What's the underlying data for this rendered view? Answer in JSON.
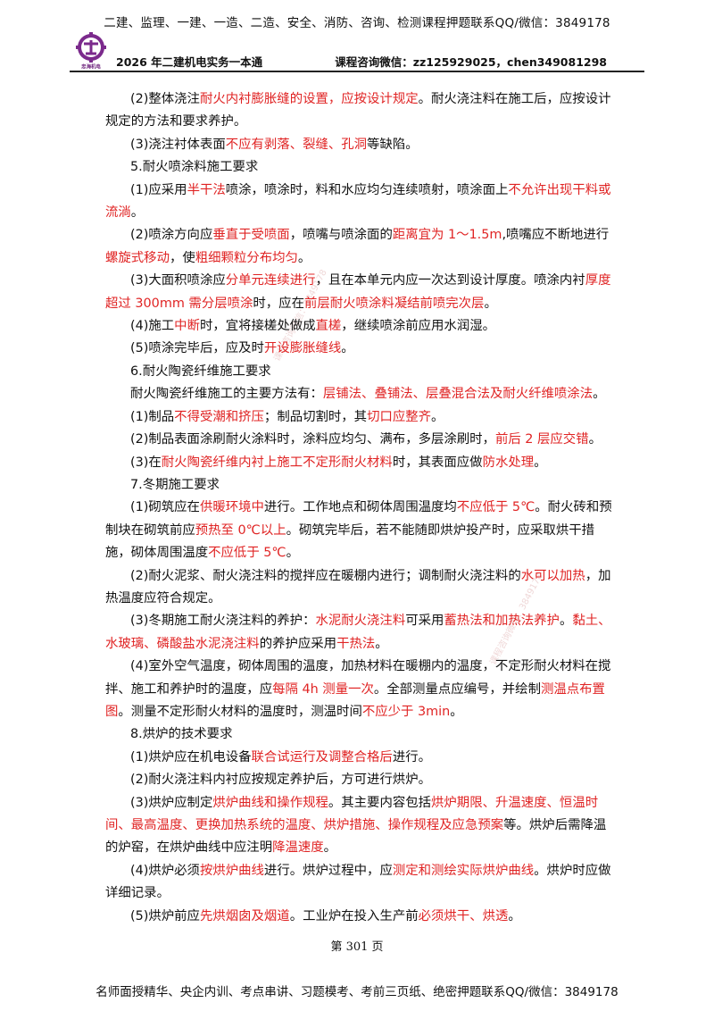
{
  "banner": {
    "top": "二建、监理、一建、一造、二造、安全、消防、咨询、检测课程押题联系QQ/微信：3849178",
    "bottom": "名师面授精华、央企内训、考点串讲、习题模考、考前三页纸、绝密押题联系QQ/微信：3849178"
  },
  "header": {
    "logo_text": "忠海机电",
    "title": "2026 年二建机电实务一本通",
    "contact": "课程咨询微信：zz125929025，chen349081298"
  },
  "watermarks": {
    "w1": "课程咨询微信：3849178",
    "w2": "课程咨询微信：3849178"
  },
  "paragraphs": [
    [
      {
        "t": "(2)整体浇注"
      },
      {
        "t": "耐火内衬膨胀缝的设置，应按设计规定",
        "r": 1
      },
      {
        "t": "。耐火浇注料在施工后，应按设计规定的方法和要求养护。"
      }
    ],
    [
      {
        "t": "(3)浇注衬体表面"
      },
      {
        "t": "不应有剥落、裂缝、孔洞",
        "r": 1
      },
      {
        "t": "等缺陷。"
      }
    ],
    [
      {
        "t": "5.耐火喷涂料施工要求"
      }
    ],
    [
      {
        "t": "(1)应采用"
      },
      {
        "t": "半干法",
        "r": 1
      },
      {
        "t": "喷涂，喷涂时，料和水应均匀连续喷射，喷涂面上"
      },
      {
        "t": "不允许出现干料或流淌",
        "r": 1
      },
      {
        "t": "。"
      }
    ],
    [
      {
        "t": "(2)喷涂方向应"
      },
      {
        "t": "垂直于受喷面",
        "r": 1
      },
      {
        "t": "，喷嘴与喷涂面的"
      },
      {
        "t": "距离宜为 1～1.5m",
        "r": 1
      },
      {
        "t": ",喷嘴应不断地进行"
      },
      {
        "t": "螺旋式移动",
        "r": 1
      },
      {
        "t": "，使"
      },
      {
        "t": "粗细颗粒分布均匀",
        "r": 1
      },
      {
        "t": "。"
      }
    ],
    [
      {
        "t": "(3)大面积喷涂应"
      },
      {
        "t": "分单元连续进行",
        "r": 1
      },
      {
        "t": "，且在本单元内应一次达到设计厚度。喷涂内衬"
      },
      {
        "t": "厚度超过 300mm 需分层喷涂",
        "r": 1
      },
      {
        "t": "时，应在"
      },
      {
        "t": "前层耐火喷涂料凝结前喷完次层",
        "r": 1
      },
      {
        "t": "。"
      }
    ],
    [
      {
        "t": "(4)施工"
      },
      {
        "t": "中断",
        "r": 1
      },
      {
        "t": "时，宜将接槎处做成"
      },
      {
        "t": "直槎",
        "r": 1
      },
      {
        "t": "，继续喷涂前应用水润湿。"
      }
    ],
    [
      {
        "t": "(5)喷涂完毕后，应及时"
      },
      {
        "t": "开设膨胀缝线",
        "r": 1
      },
      {
        "t": "。"
      }
    ],
    [
      {
        "t": "6.耐火陶瓷纤维施工要求"
      }
    ],
    [
      {
        "t": "耐火陶瓷纤维施工的主要方法有："
      },
      {
        "t": "层铺法、叠铺法、层叠混合法及耐火纤维喷涂法",
        "r": 1
      },
      {
        "t": "。"
      }
    ],
    [
      {
        "t": "(1)制品"
      },
      {
        "t": "不得受潮和挤压",
        "r": 1
      },
      {
        "t": "；制品切割时，其"
      },
      {
        "t": "切口应整齐",
        "r": 1
      },
      {
        "t": "。"
      }
    ],
    [
      {
        "t": "(2)制品表面涂刷耐火涂料时，涂料应均匀、满布，多层涂刷时，"
      },
      {
        "t": "前后 2 层应交错",
        "r": 1
      },
      {
        "t": "。"
      }
    ],
    [
      {
        "t": "(3)在"
      },
      {
        "t": "耐火陶瓷纤维内衬上施工不定形耐火材料",
        "r": 1
      },
      {
        "t": "时，其表面应做"
      },
      {
        "t": "防水处理",
        "r": 1
      },
      {
        "t": "。"
      }
    ],
    [
      {
        "t": "7.冬期施工要求"
      }
    ],
    [
      {
        "t": "(1)砌筑应在"
      },
      {
        "t": "供暖环境中",
        "r": 1
      },
      {
        "t": "进行。工作地点和砌体周围温度均"
      },
      {
        "t": "不应低于 5℃",
        "r": 1
      },
      {
        "t": "。耐火砖和预制块在砌筑前应"
      },
      {
        "t": "预热至 0℃以上",
        "r": 1
      },
      {
        "t": "。砌筑完毕后，若不能随即烘炉投产时，应采取烘干措施，砌体周围温度"
      },
      {
        "t": "不应低于 5℃",
        "r": 1
      },
      {
        "t": "。"
      }
    ],
    [
      {
        "t": "(2)耐火泥浆、耐火浇注料的搅拌应在暖棚内进行；调制耐火浇注料的"
      },
      {
        "t": "水可以加热",
        "r": 1
      },
      {
        "t": "，加热温度应符合规定。"
      }
    ],
    [
      {
        "t": "(3)冬期施工耐火浇注料的养护："
      },
      {
        "t": "水泥耐火浇注料",
        "r": 1
      },
      {
        "t": "可采用"
      },
      {
        "t": "蓄热法和加热法养护",
        "r": 1
      },
      {
        "t": "。"
      },
      {
        "t": "黏土、水玻璃、磷酸盐水泥浇注料",
        "r": 1
      },
      {
        "t": "的养护应采用"
      },
      {
        "t": "干热法",
        "r": 1
      },
      {
        "t": "。"
      }
    ],
    [
      {
        "t": "(4)室外空气温度，砌体周围的温度，加热材料在暖棚内的温度，不定形耐火材料在搅拌、施工和养护时的温度，应"
      },
      {
        "t": "每隔 4h 测量一次",
        "r": 1
      },
      {
        "t": "。全部测量点应编号，并绘制"
      },
      {
        "t": "测温点布置图",
        "r": 1
      },
      {
        "t": "。测量不定形耐火材料的温度时，测温时间"
      },
      {
        "t": "不应少于 3min",
        "r": 1
      },
      {
        "t": "。"
      }
    ],
    [
      {
        "t": "8.烘炉的技术要求"
      }
    ],
    [
      {
        "t": "(1)烘炉应在机电设备"
      },
      {
        "t": "联合试运行及调整合格后",
        "r": 1
      },
      {
        "t": "进行。"
      }
    ],
    [
      {
        "t": "(2)耐火浇注料内衬应按规定养护后，方可进行烘炉。"
      }
    ],
    [
      {
        "t": "(3)烘炉应制定"
      },
      {
        "t": "烘炉曲线和操作规程",
        "r": 1
      },
      {
        "t": "。其主要内容包括"
      },
      {
        "t": "烘炉期限、升温速度、恒温时间、最高温度、更换加热系统的温度、烘炉措施、操作规程及应急预案",
        "r": 1
      },
      {
        "t": "等。烘炉后需降温的炉窑，在烘炉曲线中应注明"
      },
      {
        "t": "降温速度",
        "r": 1
      },
      {
        "t": "。"
      }
    ],
    [
      {
        "t": "(4)烘炉必须"
      },
      {
        "t": "按烘炉曲线",
        "r": 1
      },
      {
        "t": "进行。烘炉过程中，应"
      },
      {
        "t": "测定和测绘实际烘炉曲线",
        "r": 1
      },
      {
        "t": "。烘炉时应做详细记录。"
      }
    ],
    [
      {
        "t": "(5)烘炉前应"
      },
      {
        "t": "先烘烟囱及烟道",
        "r": 1
      },
      {
        "t": "。工业炉在投入生产前"
      },
      {
        "t": "必须烘干、烘透",
        "r": 1
      },
      {
        "t": "。"
      }
    ]
  ],
  "page_number": "第 301 页"
}
